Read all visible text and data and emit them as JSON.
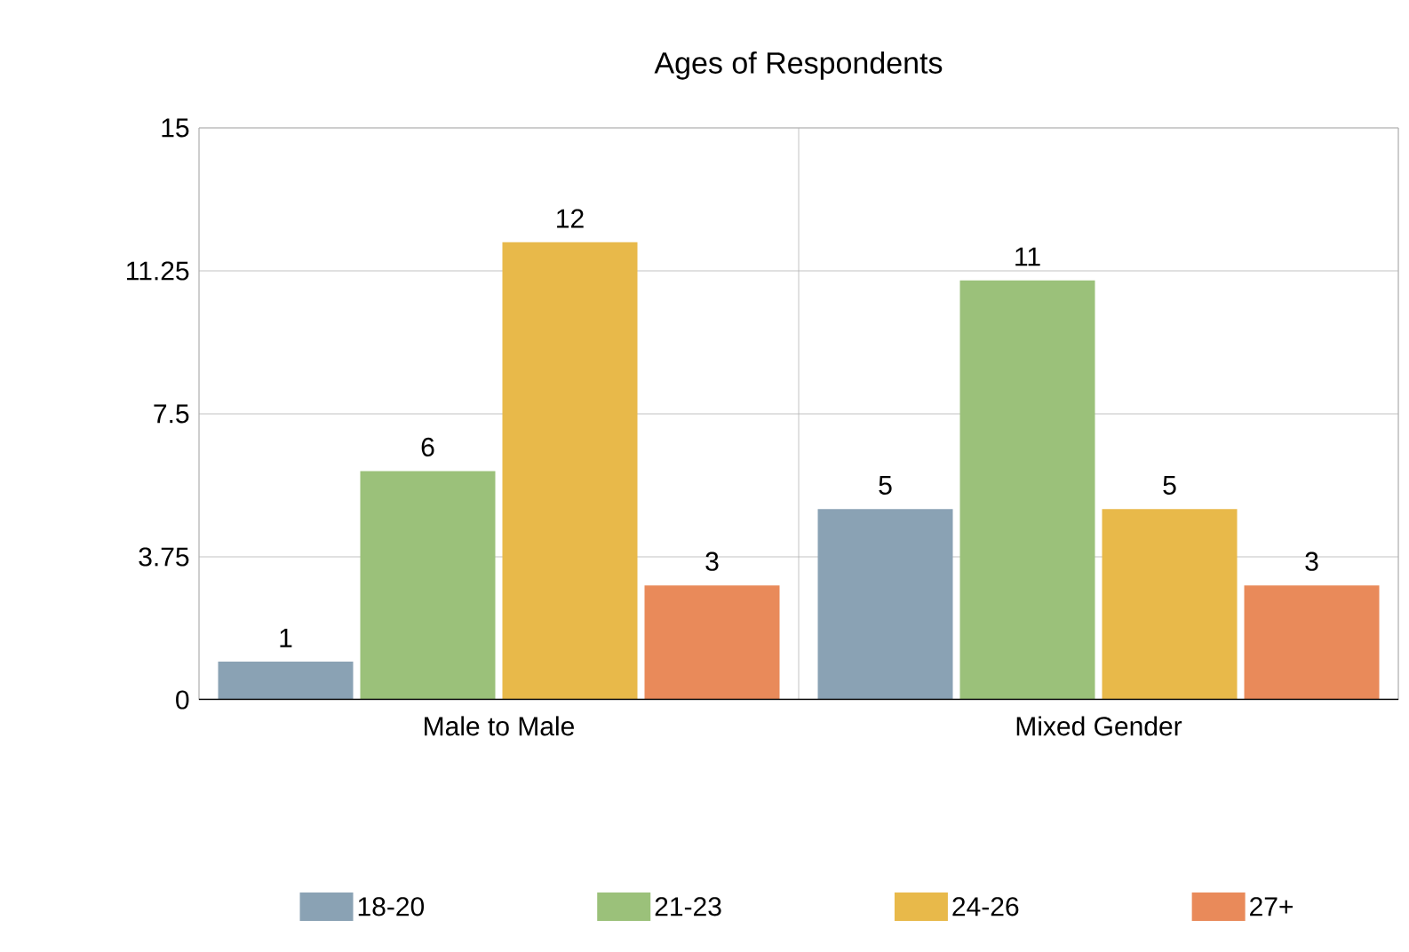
{
  "chart_data": {
    "type": "bar",
    "title": "Ages of Respondents",
    "categories": [
      "Male to Male",
      "Mixed Gender"
    ],
    "series": [
      {
        "name": "18-20",
        "color": "#8aa2b4",
        "values": [
          1,
          5
        ]
      },
      {
        "name": "21-23",
        "color": "#9bc17a",
        "values": [
          6,
          11
        ]
      },
      {
        "name": "24-26",
        "color": "#e8b94a",
        "values": [
          12,
          5
        ]
      },
      {
        "name": "27+",
        "color": "#e98a5a",
        "values": [
          3,
          3
        ]
      }
    ],
    "ylim": [
      0,
      15
    ],
    "yticks": [
      0,
      3.75,
      7.5,
      11.25,
      15
    ],
    "grid": true,
    "legend": "bottom",
    "data_labels": true
  }
}
